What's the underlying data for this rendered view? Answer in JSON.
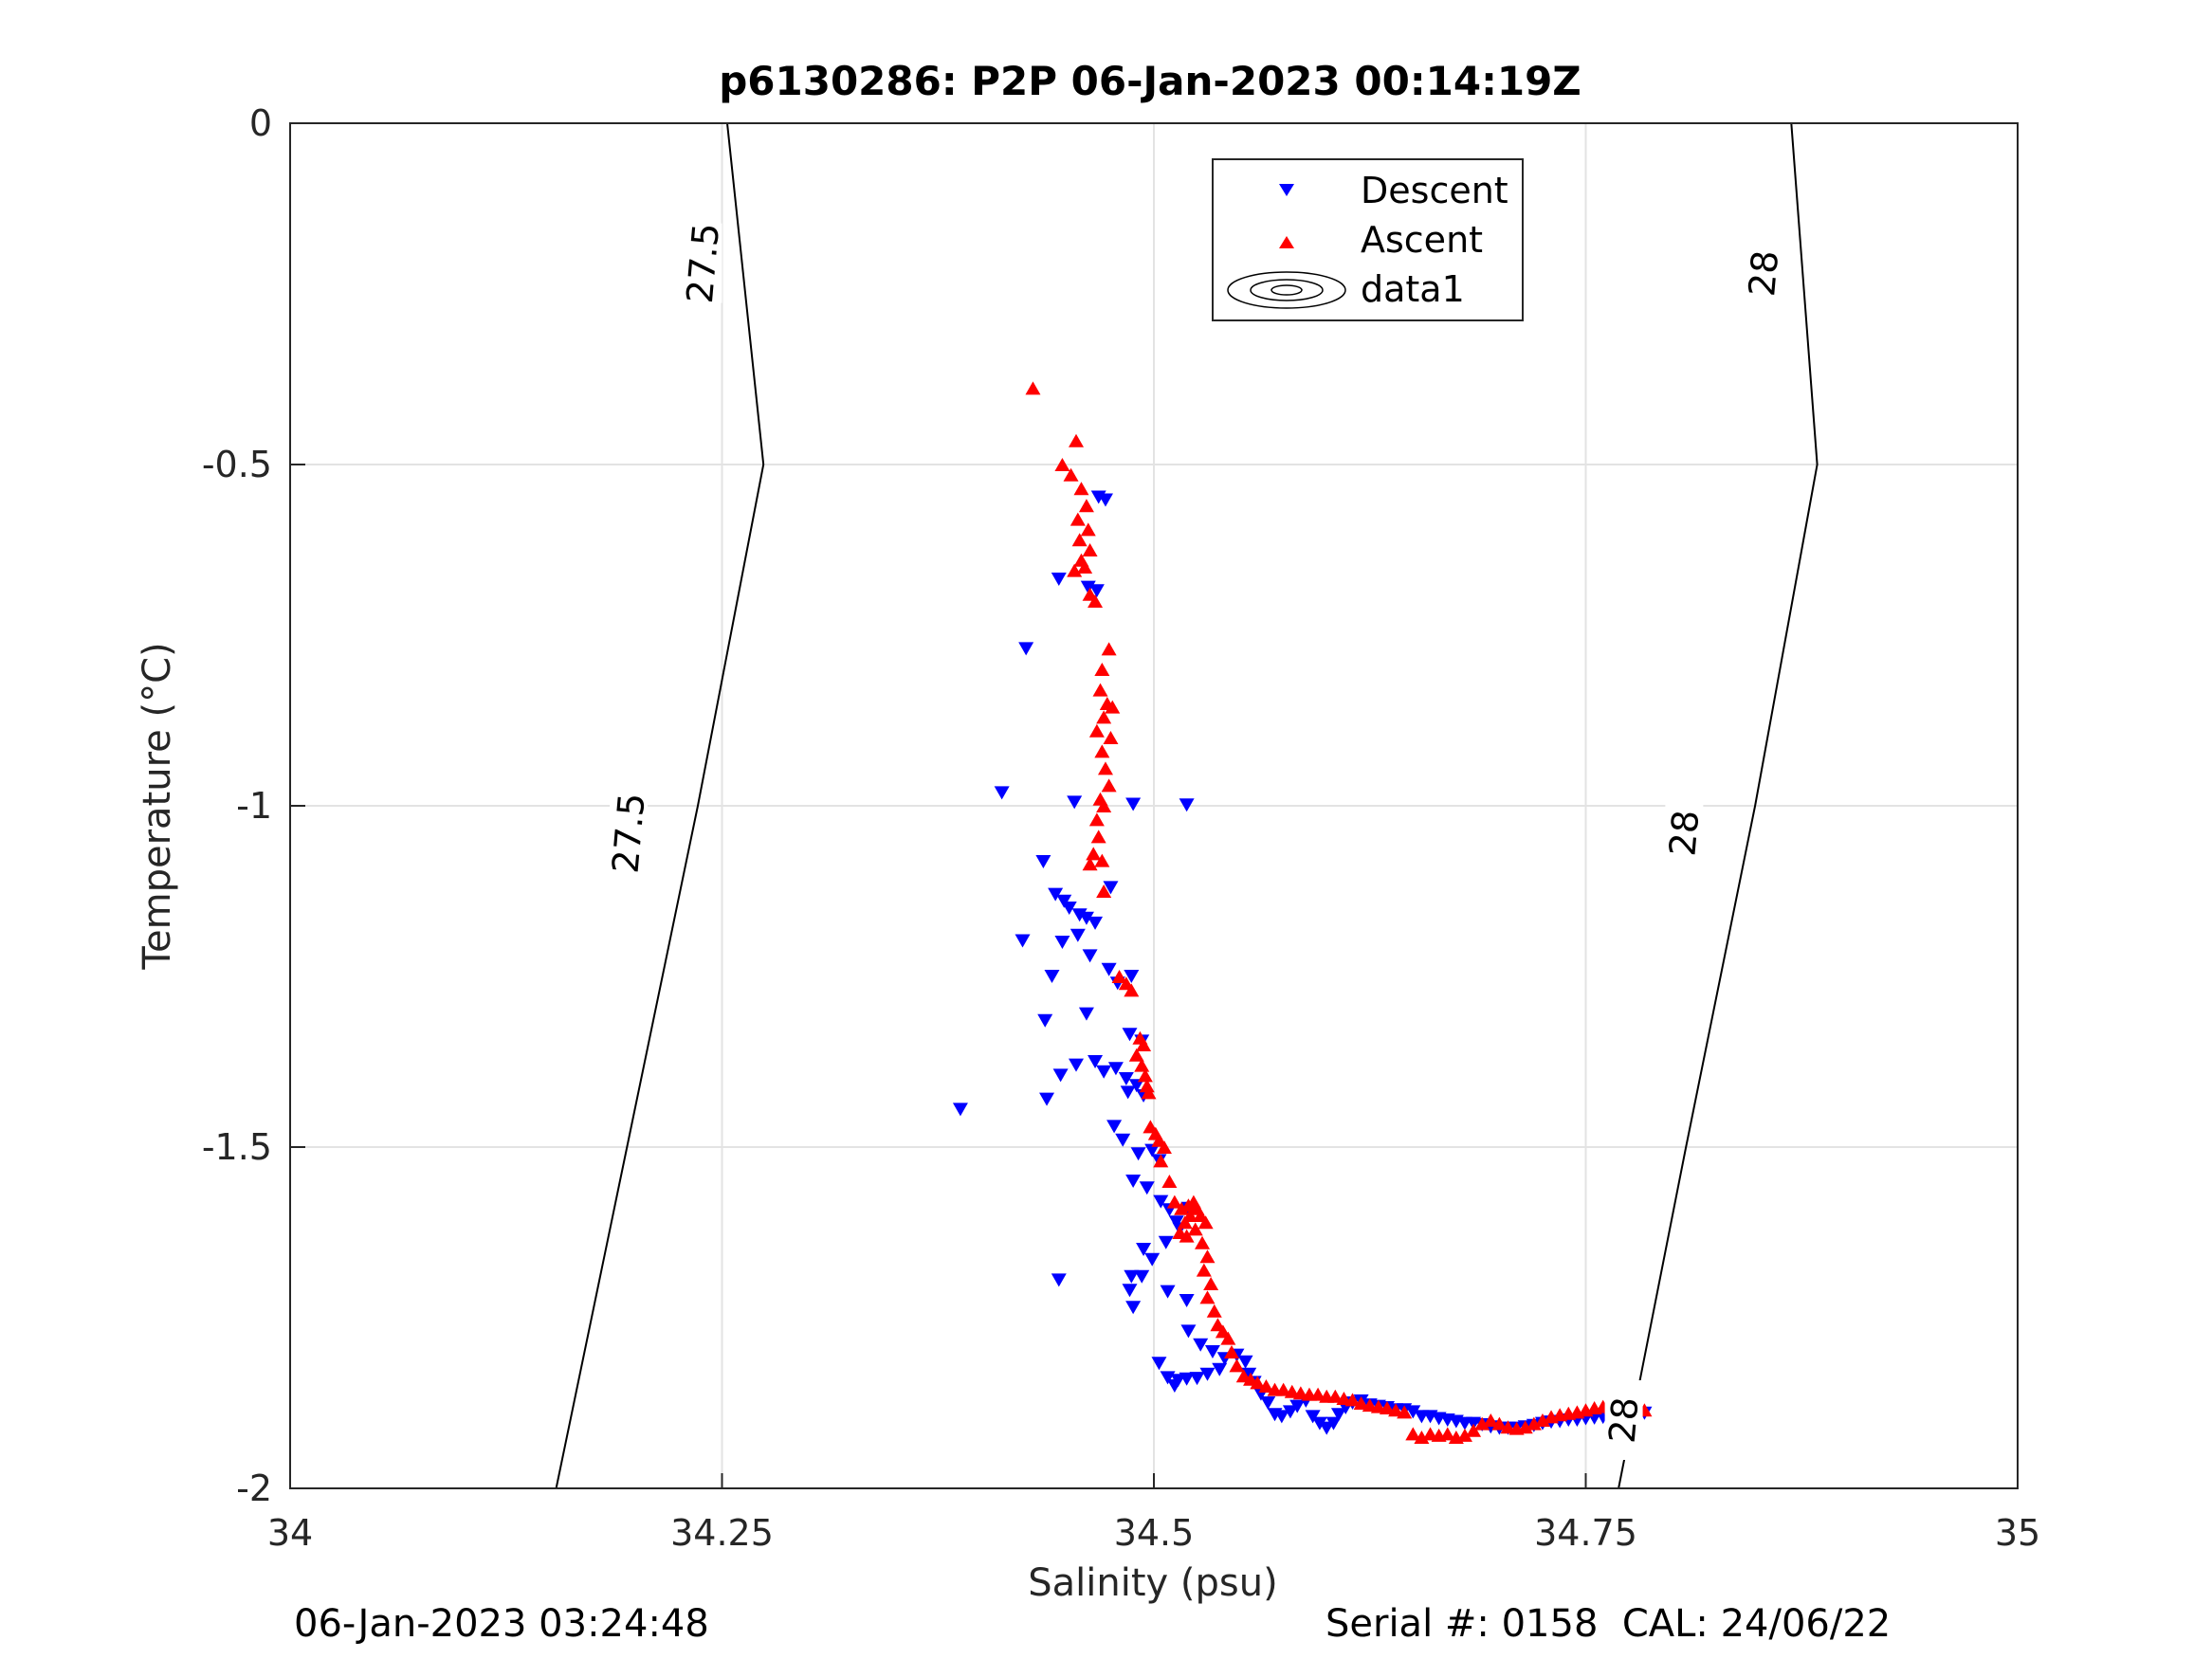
{
  "chart_data": {
    "type": "scatter",
    "title": "p6130286: P2P 06-Jan-2023 00:14:19Z",
    "xlabel": "Salinity (psu)",
    "ylabel": "Temperature (°C)",
    "xlim": [
      34,
      35
    ],
    "ylim": [
      -2,
      0
    ],
    "xticks": [
      34,
      34.25,
      34.5,
      34.75,
      35
    ],
    "xtick_labels": [
      "34",
      "34.25",
      "34.5",
      "34.75",
      "35"
    ],
    "yticks": [
      -2,
      -1.5,
      -1,
      -0.5,
      0
    ],
    "ytick_labels": [
      "-2",
      "-1.5",
      "-1",
      "-0.5",
      "0"
    ],
    "grid": true,
    "legend_position": "top-center",
    "legend": [
      "Descent",
      "Ascent",
      "data1"
    ],
    "series": [
      {
        "name": "Descent",
        "marker": "triangle-down",
        "color": "#0000ff",
        "points": [
          [
            34.468,
            -0.548
          ],
          [
            34.472,
            -0.552
          ],
          [
            34.445,
            -0.668
          ],
          [
            34.462,
            -0.68
          ],
          [
            34.467,
            -0.685
          ],
          [
            34.426,
            -0.77
          ],
          [
            34.412,
            -0.981
          ],
          [
            34.454,
            -0.995
          ],
          [
            34.488,
            -0.998
          ],
          [
            34.519,
            -0.999
          ],
          [
            34.436,
            -1.082
          ],
          [
            34.443,
            -1.13
          ],
          [
            34.448,
            -1.14
          ],
          [
            34.451,
            -1.15
          ],
          [
            34.457,
            -1.16
          ],
          [
            34.461,
            -1.165
          ],
          [
            34.466,
            -1.172
          ],
          [
            34.475,
            -1.12
          ],
          [
            34.463,
            -1.22
          ],
          [
            34.447,
            -1.2
          ],
          [
            34.456,
            -1.19
          ],
          [
            34.441,
            -1.25
          ],
          [
            34.424,
            -1.198
          ],
          [
            34.479,
            -1.26
          ],
          [
            34.474,
            -1.24
          ],
          [
            34.487,
            -1.25
          ],
          [
            34.437,
            -1.315
          ],
          [
            34.461,
            -1.305
          ],
          [
            34.486,
            -1.335
          ],
          [
            34.493,
            -1.345
          ],
          [
            34.478,
            -1.385
          ],
          [
            34.466,
            -1.375
          ],
          [
            34.455,
            -1.38
          ],
          [
            34.446,
            -1.395
          ],
          [
            34.471,
            -1.39
          ],
          [
            34.484,
            -1.4
          ],
          [
            34.49,
            -1.41
          ],
          [
            34.485,
            -1.42
          ],
          [
            34.494,
            -1.425
          ],
          [
            34.438,
            -1.43
          ],
          [
            34.388,
            -1.445
          ],
          [
            34.477,
            -1.47
          ],
          [
            34.482,
            -1.49
          ],
          [
            34.491,
            -1.51
          ],
          [
            34.499,
            -1.505
          ],
          [
            34.503,
            -1.52
          ],
          [
            34.488,
            -1.55
          ],
          [
            34.496,
            -1.56
          ],
          [
            34.504,
            -1.58
          ],
          [
            34.509,
            -1.592
          ],
          [
            34.515,
            -1.62
          ],
          [
            34.494,
            -1.65
          ],
          [
            34.499,
            -1.665
          ],
          [
            34.507,
            -1.64
          ],
          [
            34.513,
            -1.61
          ],
          [
            34.52,
            -1.59
          ],
          [
            34.487,
            -1.69
          ],
          [
            34.493,
            -1.69
          ],
          [
            34.445,
            -1.695
          ],
          [
            34.486,
            -1.71
          ],
          [
            34.508,
            -1.712
          ],
          [
            34.519,
            -1.725
          ],
          [
            34.488,
            -1.735
          ],
          [
            34.52,
            -1.77
          ],
          [
            34.527,
            -1.79
          ],
          [
            34.534,
            -1.8
          ],
          [
            34.541,
            -1.81
          ],
          [
            34.548,
            -1.805
          ],
          [
            34.553,
            -1.815
          ],
          [
            34.555,
            -1.833
          ],
          [
            34.538,
            -1.826
          ],
          [
            34.531,
            -1.833
          ],
          [
            34.525,
            -1.839
          ],
          [
            34.519,
            -1.84
          ],
          [
            34.514,
            -1.842
          ],
          [
            34.508,
            -1.838
          ],
          [
            34.503,
            -1.817
          ],
          [
            34.512,
            -1.85
          ],
          [
            34.558,
            -1.845
          ],
          [
            34.562,
            -1.862
          ],
          [
            34.566,
            -1.875
          ],
          [
            34.57,
            -1.892
          ],
          [
            34.574,
            -1.895
          ],
          [
            34.579,
            -1.888
          ],
          [
            34.583,
            -1.88
          ],
          [
            34.588,
            -1.872
          ],
          [
            34.592,
            -1.895
          ],
          [
            34.596,
            -1.905
          ],
          [
            34.6,
            -1.912
          ],
          [
            34.604,
            -1.905
          ],
          [
            34.607,
            -1.892
          ],
          [
            34.611,
            -1.882
          ],
          [
            34.615,
            -1.875
          ],
          [
            34.62,
            -1.872
          ],
          [
            34.625,
            -1.878
          ],
          [
            34.63,
            -1.88
          ],
          [
            34.635,
            -1.882
          ],
          [
            34.64,
            -1.885
          ],
          [
            34.645,
            -1.885
          ],
          [
            34.65,
            -1.888
          ],
          [
            34.655,
            -1.895
          ],
          [
            34.66,
            -1.895
          ],
          [
            34.665,
            -1.898
          ],
          [
            34.67,
            -1.9
          ],
          [
            34.675,
            -1.902
          ],
          [
            34.68,
            -1.905
          ],
          [
            34.685,
            -1.905
          ],
          [
            34.69,
            -1.907
          ],
          [
            34.695,
            -1.91
          ],
          [
            34.7,
            -1.912
          ],
          [
            34.705,
            -1.912
          ],
          [
            34.71,
            -1.912
          ],
          [
            34.715,
            -1.91
          ],
          [
            34.72,
            -1.908
          ],
          [
            34.725,
            -1.905
          ],
          [
            34.73,
            -1.903
          ],
          [
            34.735,
            -1.902
          ],
          [
            34.74,
            -1.9
          ],
          [
            34.745,
            -1.9
          ],
          [
            34.75,
            -1.898
          ],
          [
            34.755,
            -1.897
          ],
          [
            34.76,
            -1.896
          ],
          [
            34.765,
            -1.895
          ],
          [
            34.77,
            -1.893
          ],
          [
            34.775,
            -1.893
          ],
          [
            34.78,
            -1.892
          ],
          [
            34.784,
            -1.89
          ]
        ]
      },
      {
        "name": "Ascent",
        "marker": "triangle-up",
        "color": "#ff0000",
        "points": [
          [
            34.43,
            -0.388
          ],
          [
            34.455,
            -0.465
          ],
          [
            34.447,
            -0.5
          ],
          [
            34.452,
            -0.515
          ],
          [
            34.458,
            -0.535
          ],
          [
            34.461,
            -0.56
          ],
          [
            34.456,
            -0.58
          ],
          [
            34.462,
            -0.595
          ],
          [
            34.457,
            -0.61
          ],
          [
            34.463,
            -0.625
          ],
          [
            34.458,
            -0.64
          ],
          [
            34.454,
            -0.655
          ],
          [
            34.46,
            -0.65
          ],
          [
            34.463,
            -0.69
          ],
          [
            34.466,
            -0.7
          ],
          [
            34.474,
            -0.77
          ],
          [
            34.47,
            -0.8
          ],
          [
            34.469,
            -0.83
          ],
          [
            34.473,
            -0.85
          ],
          [
            34.476,
            -0.855
          ],
          [
            34.471,
            -0.87
          ],
          [
            34.467,
            -0.89
          ],
          [
            34.475,
            -0.9
          ],
          [
            34.47,
            -0.92
          ],
          [
            34.472,
            -0.945
          ],
          [
            34.474,
            -0.97
          ],
          [
            34.469,
            -0.99
          ],
          [
            34.471,
            -1.0
          ],
          [
            34.467,
            -1.02
          ],
          [
            34.468,
            -1.045
          ],
          [
            34.465,
            -1.07
          ],
          [
            34.463,
            -1.085
          ],
          [
            34.47,
            -1.08
          ],
          [
            34.471,
            -1.125
          ],
          [
            34.48,
            -1.25
          ],
          [
            34.484,
            -1.26
          ],
          [
            34.487,
            -1.27
          ],
          [
            34.492,
            -1.34
          ],
          [
            34.494,
            -1.35
          ],
          [
            34.49,
            -1.365
          ],
          [
            34.493,
            -1.38
          ],
          [
            34.495,
            -1.395
          ],
          [
            34.496,
            -1.41
          ],
          [
            34.497,
            -1.42
          ],
          [
            34.498,
            -1.47
          ],
          [
            34.501,
            -1.48
          ],
          [
            34.503,
            -1.49
          ],
          [
            34.506,
            -1.5
          ],
          [
            34.504,
            -1.52
          ],
          [
            34.509,
            -1.55
          ],
          [
            34.512,
            -1.58
          ],
          [
            34.516,
            -1.59
          ],
          [
            34.52,
            -1.585
          ],
          [
            34.523,
            -1.58
          ],
          [
            34.525,
            -1.59
          ],
          [
            34.521,
            -1.6
          ],
          [
            34.518,
            -1.61
          ],
          [
            34.515,
            -1.625
          ],
          [
            34.519,
            -1.63
          ],
          [
            34.524,
            -1.62
          ],
          [
            34.527,
            -1.6
          ],
          [
            34.53,
            -1.61
          ],
          [
            34.528,
            -1.64
          ],
          [
            34.531,
            -1.66
          ],
          [
            34.529,
            -1.68
          ],
          [
            34.533,
            -1.7
          ],
          [
            34.531,
            -1.72
          ],
          [
            34.535,
            -1.74
          ],
          [
            34.537,
            -1.76
          ],
          [
            34.54,
            -1.77
          ],
          [
            34.543,
            -1.78
          ],
          [
            34.545,
            -1.8
          ],
          [
            34.548,
            -1.82
          ],
          [
            34.552,
            -1.835
          ],
          [
            34.556,
            -1.84
          ],
          [
            34.56,
            -1.845
          ],
          [
            34.565,
            -1.85
          ],
          [
            34.57,
            -1.855
          ],
          [
            34.575,
            -1.855
          ],
          [
            34.58,
            -1.858
          ],
          [
            34.585,
            -1.86
          ],
          [
            34.59,
            -1.862
          ],
          [
            34.595,
            -1.862
          ],
          [
            34.6,
            -1.865
          ],
          [
            34.605,
            -1.865
          ],
          [
            34.61,
            -1.868
          ],
          [
            34.615,
            -1.87
          ],
          [
            34.62,
            -1.875
          ],
          [
            34.625,
            -1.878
          ],
          [
            34.63,
            -1.88
          ],
          [
            34.635,
            -1.882
          ],
          [
            34.64,
            -1.885
          ],
          [
            34.645,
            -1.888
          ],
          [
            34.65,
            -1.92
          ],
          [
            34.655,
            -1.925
          ],
          [
            34.66,
            -1.92
          ],
          [
            34.665,
            -1.922
          ],
          [
            34.67,
            -1.92
          ],
          [
            34.675,
            -1.925
          ],
          [
            34.68,
            -1.922
          ],
          [
            34.685,
            -1.915
          ],
          [
            34.69,
            -1.905
          ],
          [
            34.695,
            -1.9
          ],
          [
            34.7,
            -1.905
          ],
          [
            34.705,
            -1.91
          ],
          [
            34.71,
            -1.912
          ],
          [
            34.715,
            -1.91
          ],
          [
            34.72,
            -1.905
          ],
          [
            34.725,
            -1.9
          ],
          [
            34.73,
            -1.895
          ],
          [
            34.735,
            -1.892
          ],
          [
            34.74,
            -1.89
          ],
          [
            34.745,
            -1.888
          ],
          [
            34.75,
            -1.885
          ],
          [
            34.755,
            -1.882
          ],
          [
            34.76,
            -1.88
          ],
          [
            34.765,
            -1.882
          ],
          [
            34.77,
            -1.885
          ],
          [
            34.775,
            -1.882
          ],
          [
            34.78,
            -1.88
          ],
          [
            34.784,
            -1.885
          ]
        ]
      },
      {
        "name": "data1",
        "type": "contour",
        "color": "#000000",
        "levels": [
          {
            "value": 27.5,
            "points": [
              [
                34.154,
                -2.0
              ],
              [
                34.195,
                -1.5
              ],
              [
                34.236,
                -1.0
              ],
              [
                34.274,
                -0.5
              ],
              [
                34.253,
                0.0
              ]
            ],
            "labels": [
              {
                "text": "27.5",
                "at": [
                  34.196,
                  -1.04
                ]
              },
              {
                "text": "27.5",
                "at": [
                  34.239,
                  -0.205
                ]
              }
            ]
          },
          {
            "value": 28,
            "points": [
              [
                34.769,
                -2.0
              ],
              [
                34.808,
                -1.5
              ],
              [
                34.848,
                -1.0
              ],
              [
                34.884,
                -0.5
              ],
              [
                34.869,
                0.0
              ]
            ],
            "labels": [
              {
                "text": "28",
                "at": [
                  34.807,
                  -1.04
                ]
              },
              {
                "text": "28",
                "at": [
                  34.853,
                  -0.22
                ]
              },
              {
                "text": "28",
                "at": [
                  34.772,
                  -1.9
                ]
              }
            ]
          }
        ]
      }
    ]
  },
  "footer": {
    "left": "06-Jan-2023 03:24:48",
    "right": "Serial #: 0158  CAL: 24/06/22"
  }
}
